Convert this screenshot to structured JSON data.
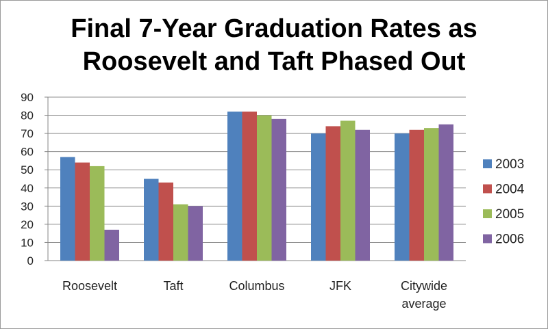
{
  "chart_data": {
    "type": "bar",
    "title": "Final 7-Year Graduation Rates as Roosevelt and Taft Phased Out",
    "title_lines": [
      "Final 7-Year Graduation Rates as",
      "Roosevelt and Taft Phased Out"
    ],
    "categories": [
      "Roosevelt",
      "Taft",
      "Columbus",
      "JFK",
      "Citywide average"
    ],
    "category_lines": [
      [
        "Roosevelt"
      ],
      [
        "Taft"
      ],
      [
        "Columbus"
      ],
      [
        "JFK"
      ],
      [
        "Citywide",
        "average"
      ]
    ],
    "series": [
      {
        "name": "2003",
        "color": "#4f81bd",
        "values": [
          57,
          45,
          82,
          70,
          70
        ]
      },
      {
        "name": "2004",
        "color": "#c0504d",
        "values": [
          54,
          43,
          82,
          74,
          72
        ]
      },
      {
        "name": "2005",
        "color": "#9bbb59",
        "values": [
          52,
          31,
          80,
          77,
          73
        ]
      },
      {
        "name": "2006",
        "color": "#8064a2",
        "values": [
          17,
          30,
          78,
          72,
          75
        ]
      }
    ],
    "yticks": [
      0,
      10,
      20,
      30,
      40,
      50,
      60,
      70,
      80,
      90
    ],
    "ylim": [
      0,
      90
    ],
    "xlabel": "",
    "ylabel": "",
    "grid": true,
    "legend": "right"
  }
}
